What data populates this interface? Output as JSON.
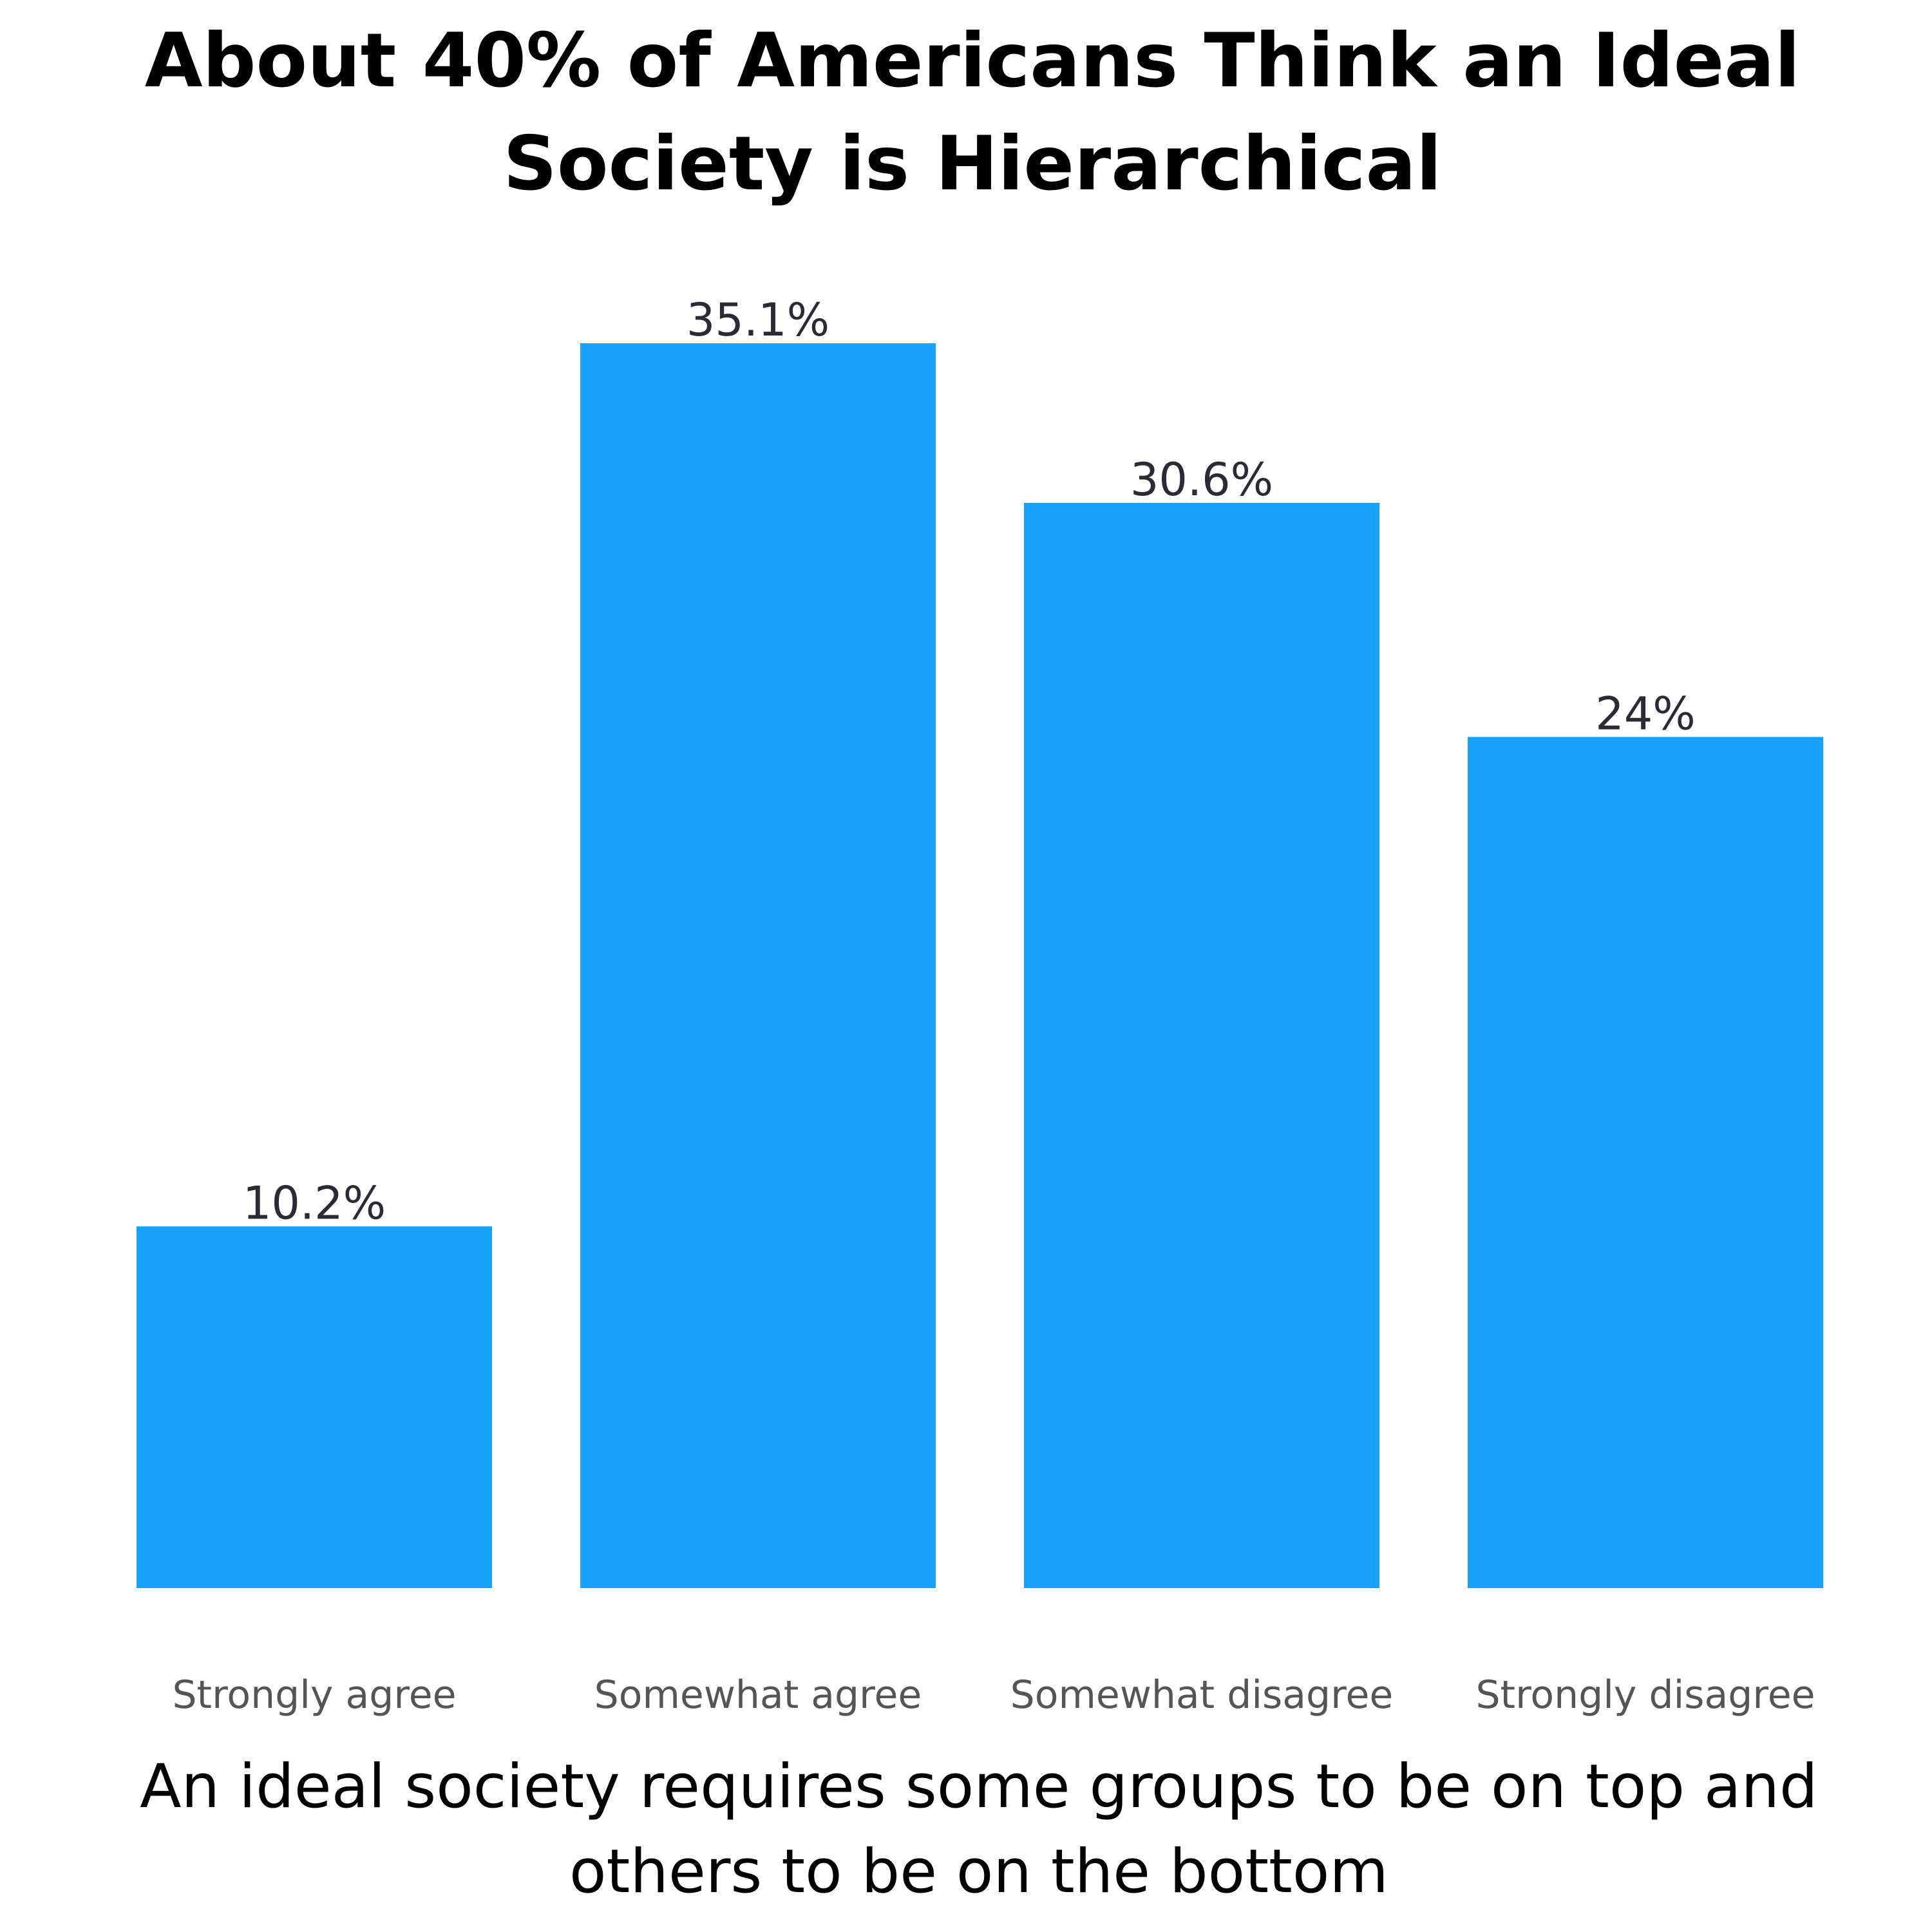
{
  "chart_data": {
    "type": "bar",
    "title_lines": [
      "About 40% of Americans Think an Ideal",
      "Society is Hierarchical"
    ],
    "categories": [
      "Strongly agree",
      "Somewhat agree",
      "Somewhat disagree",
      "Strongly disagree"
    ],
    "values": [
      10.2,
      35.1,
      30.6,
      24
    ],
    "value_labels": [
      "10.2%",
      "35.1%",
      "30.6%",
      "24%"
    ],
    "xlabel_lines": [
      "An ideal society requires some groups to be on top and",
      "others to be on the bottom"
    ],
    "ylabel": "",
    "ylim": [
      0,
      35.1
    ],
    "grid": false,
    "bar_color": "#18a2fb",
    "value_label_color": "#2b2b33",
    "tick_label_color": "#555555"
  }
}
